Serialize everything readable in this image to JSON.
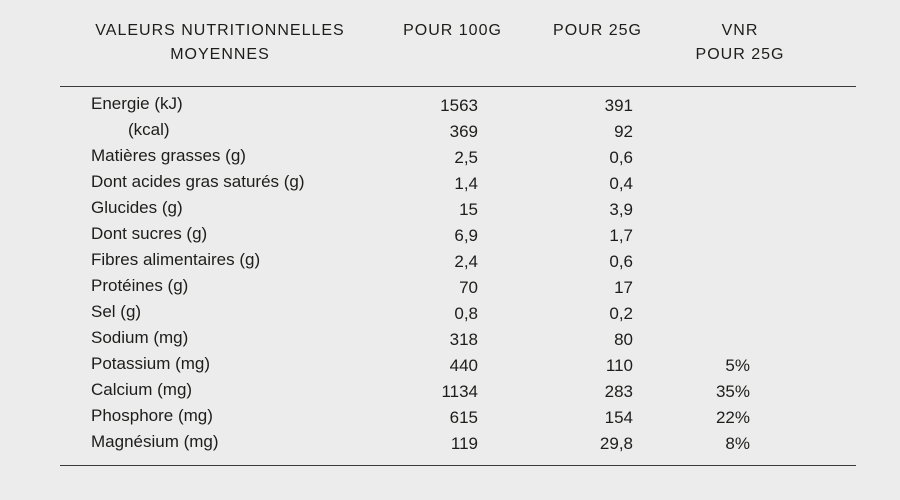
{
  "colors": {
    "background": "#ECECEC",
    "text": "#1D1D1B",
    "rule": "#3A3A3A"
  },
  "chart_data": {
    "type": "table",
    "title": "VALEURS NUTRITIONNELLES MOYENNES",
    "header": {
      "label_line1": "VALEURS NUTRITIONNELLES",
      "label_line2": "MOYENNES",
      "col_100g": "POUR 100G",
      "col_25g": "POUR 25G",
      "vnr_line1": "VNR",
      "vnr_line2": "POUR 25G"
    },
    "columns": [
      "VALEURS NUTRITIONNELLES MOYENNES",
      "POUR 100G",
      "POUR 25G",
      "VNR POUR 25G"
    ],
    "rows": [
      {
        "label": "Energie (kJ)",
        "indent": false,
        "per_100g": "1563",
        "per_25g": "391",
        "vnr_25g": ""
      },
      {
        "label": "(kcal)",
        "indent": true,
        "per_100g": "369",
        "per_25g": "92",
        "vnr_25g": ""
      },
      {
        "label": "Matières grasses (g)",
        "indent": false,
        "per_100g": "2,5",
        "per_25g": "0,6",
        "vnr_25g": ""
      },
      {
        "label": "Dont acides gras saturés (g)",
        "indent": false,
        "per_100g": "1,4",
        "per_25g": "0,4",
        "vnr_25g": ""
      },
      {
        "label": "Glucides (g)",
        "indent": false,
        "per_100g": "15",
        "per_25g": "3,9",
        "vnr_25g": ""
      },
      {
        "label": "Dont sucres (g)",
        "indent": false,
        "per_100g": "6,9",
        "per_25g": "1,7",
        "vnr_25g": ""
      },
      {
        "label": "Fibres alimentaires (g)",
        "indent": false,
        "per_100g": "2,4",
        "per_25g": "0,6",
        "vnr_25g": ""
      },
      {
        "label": "Protéines (g)",
        "indent": false,
        "per_100g": "70",
        "per_25g": "17",
        "vnr_25g": ""
      },
      {
        "label": "Sel (g)",
        "indent": false,
        "per_100g": "0,8",
        "per_25g": "0,2",
        "vnr_25g": ""
      },
      {
        "label": "Sodium (mg)",
        "indent": false,
        "per_100g": "318",
        "per_25g": "80",
        "vnr_25g": ""
      },
      {
        "label": "Potassium (mg)",
        "indent": false,
        "per_100g": "440",
        "per_25g": "110",
        "vnr_25g": "5%"
      },
      {
        "label": "Calcium (mg)",
        "indent": false,
        "per_100g": "1134",
        "per_25g": "283",
        "vnr_25g": "35%"
      },
      {
        "label": "Phosphore (mg)",
        "indent": false,
        "per_100g": "615",
        "per_25g": "154",
        "vnr_25g": "22%"
      },
      {
        "label": "Magnésium (mg)",
        "indent": false,
        "per_100g": "119",
        "per_25g": "29,8",
        "vnr_25g": "8%"
      }
    ]
  }
}
